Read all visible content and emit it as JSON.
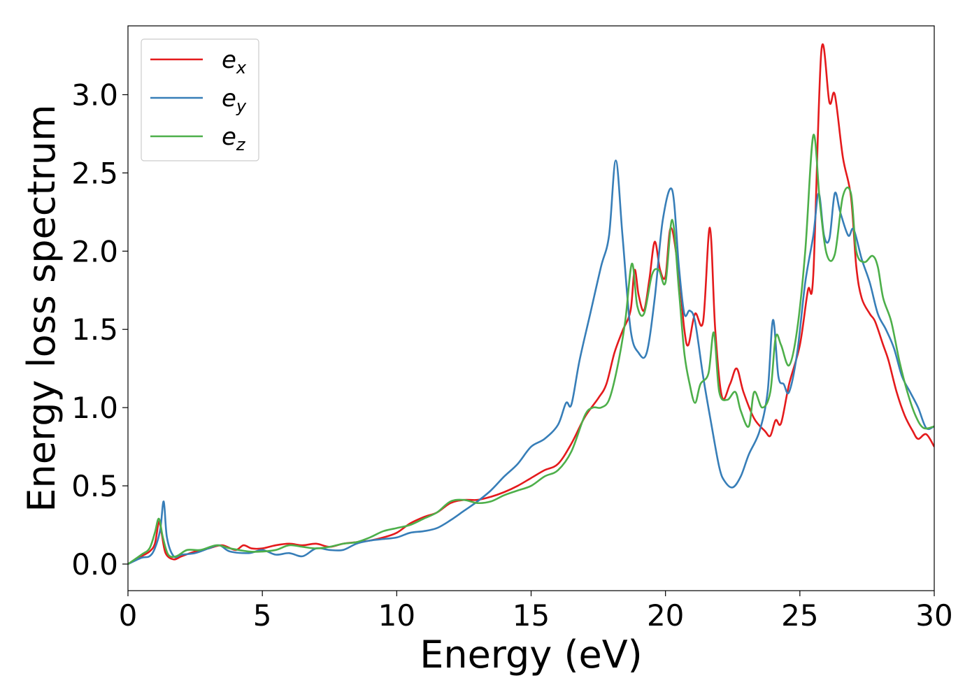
{
  "chart_data": {
    "type": "line",
    "title": "",
    "xlabel": "Energy (eV)",
    "ylabel": "Energy loss spectrum",
    "xlim": [
      0,
      30
    ],
    "ylim": [
      -0.17,
      3.44
    ],
    "xticks": [
      0,
      5,
      10,
      15,
      20,
      25,
      30
    ],
    "xtick_labels": [
      "0",
      "5",
      "10",
      "15",
      "20",
      "25",
      "30"
    ],
    "yticks": [
      0.0,
      0.5,
      1.0,
      1.5,
      2.0,
      2.5,
      3.0
    ],
    "ytick_labels": [
      "0.0",
      "0.5",
      "1.0",
      "1.5",
      "2.0",
      "2.5",
      "3.0"
    ],
    "grid": false,
    "legend_position": "top-left",
    "series": [
      {
        "name": "e_x",
        "legend_base": "e",
        "legend_sub": "x",
        "color": "#e41a1c",
        "points": [
          [
            0,
            0.0
          ],
          [
            0.5,
            0.05
          ],
          [
            0.8,
            0.08
          ],
          [
            1.0,
            0.13
          ],
          [
            1.15,
            0.27
          ],
          [
            1.25,
            0.2
          ],
          [
            1.4,
            0.07
          ],
          [
            1.7,
            0.03
          ],
          [
            2.0,
            0.05
          ],
          [
            2.5,
            0.08
          ],
          [
            3.0,
            0.1
          ],
          [
            3.5,
            0.12
          ],
          [
            4.0,
            0.09
          ],
          [
            4.3,
            0.12
          ],
          [
            4.6,
            0.1
          ],
          [
            5.0,
            0.1
          ],
          [
            5.5,
            0.12
          ],
          [
            6.0,
            0.13
          ],
          [
            6.5,
            0.12
          ],
          [
            7.0,
            0.13
          ],
          [
            7.5,
            0.11
          ],
          [
            8.0,
            0.13
          ],
          [
            8.5,
            0.14
          ],
          [
            9.0,
            0.15
          ],
          [
            9.5,
            0.17
          ],
          [
            10.0,
            0.2
          ],
          [
            10.5,
            0.26
          ],
          [
            11.0,
            0.3
          ],
          [
            11.5,
            0.33
          ],
          [
            12.0,
            0.39
          ],
          [
            12.5,
            0.41
          ],
          [
            13.0,
            0.41
          ],
          [
            13.5,
            0.43
          ],
          [
            14.0,
            0.46
          ],
          [
            14.5,
            0.5
          ],
          [
            15.0,
            0.55
          ],
          [
            15.5,
            0.6
          ],
          [
            16.0,
            0.64
          ],
          [
            16.5,
            0.77
          ],
          [
            17.0,
            0.94
          ],
          [
            17.5,
            1.06
          ],
          [
            17.8,
            1.15
          ],
          [
            18.1,
            1.35
          ],
          [
            18.4,
            1.49
          ],
          [
            18.7,
            1.62
          ],
          [
            18.85,
            1.88
          ],
          [
            19.0,
            1.72
          ],
          [
            19.2,
            1.62
          ],
          [
            19.4,
            1.82
          ],
          [
            19.6,
            2.06
          ],
          [
            19.8,
            1.88
          ],
          [
            20.0,
            1.84
          ],
          [
            20.2,
            2.15
          ],
          [
            20.5,
            1.85
          ],
          [
            20.7,
            1.5
          ],
          [
            20.85,
            1.4
          ],
          [
            21.1,
            1.6
          ],
          [
            21.4,
            1.55
          ],
          [
            21.65,
            2.15
          ],
          [
            21.85,
            1.5
          ],
          [
            22.1,
            1.07
          ],
          [
            22.4,
            1.15
          ],
          [
            22.65,
            1.25
          ],
          [
            22.9,
            1.1
          ],
          [
            23.3,
            0.93
          ],
          [
            23.7,
            0.85
          ],
          [
            23.9,
            0.82
          ],
          [
            24.1,
            0.92
          ],
          [
            24.3,
            0.9
          ],
          [
            24.6,
            1.15
          ],
          [
            25.0,
            1.4
          ],
          [
            25.3,
            1.75
          ],
          [
            25.5,
            1.85
          ],
          [
            25.8,
            3.28
          ],
          [
            26.1,
            2.95
          ],
          [
            26.3,
            3.0
          ],
          [
            26.6,
            2.6
          ],
          [
            26.9,
            2.35
          ],
          [
            27.1,
            1.9
          ],
          [
            27.3,
            1.7
          ],
          [
            27.6,
            1.6
          ],
          [
            27.8,
            1.55
          ],
          [
            28.1,
            1.4
          ],
          [
            28.3,
            1.3
          ],
          [
            28.6,
            1.1
          ],
          [
            28.9,
            0.95
          ],
          [
            29.2,
            0.85
          ],
          [
            29.4,
            0.8
          ],
          [
            29.7,
            0.83
          ],
          [
            30.0,
            0.75
          ]
        ]
      },
      {
        "name": "e_y",
        "legend_base": "e",
        "legend_sub": "y",
        "color": "#377eb8",
        "points": [
          [
            0,
            0.0
          ],
          [
            0.5,
            0.04
          ],
          [
            0.8,
            0.05
          ],
          [
            1.0,
            0.1
          ],
          [
            1.2,
            0.22
          ],
          [
            1.33,
            0.4
          ],
          [
            1.45,
            0.17
          ],
          [
            1.7,
            0.05
          ],
          [
            2.0,
            0.06
          ],
          [
            2.5,
            0.07
          ],
          [
            3.0,
            0.1
          ],
          [
            3.4,
            0.12
          ],
          [
            3.8,
            0.08
          ],
          [
            4.5,
            0.07
          ],
          [
            5.0,
            0.09
          ],
          [
            5.5,
            0.06
          ],
          [
            6.0,
            0.07
          ],
          [
            6.5,
            0.05
          ],
          [
            7.0,
            0.1
          ],
          [
            7.5,
            0.09
          ],
          [
            8.0,
            0.09
          ],
          [
            8.5,
            0.13
          ],
          [
            9.0,
            0.15
          ],
          [
            9.5,
            0.16
          ],
          [
            10.0,
            0.17
          ],
          [
            10.5,
            0.2
          ],
          [
            11.0,
            0.21
          ],
          [
            11.5,
            0.23
          ],
          [
            12.0,
            0.28
          ],
          [
            12.5,
            0.34
          ],
          [
            13.0,
            0.4
          ],
          [
            13.5,
            0.47
          ],
          [
            14.0,
            0.56
          ],
          [
            14.5,
            0.64
          ],
          [
            15.0,
            0.75
          ],
          [
            15.5,
            0.8
          ],
          [
            16.0,
            0.89
          ],
          [
            16.3,
            1.03
          ],
          [
            16.5,
            1.02
          ],
          [
            16.8,
            1.3
          ],
          [
            17.2,
            1.6
          ],
          [
            17.6,
            1.9
          ],
          [
            17.9,
            2.1
          ],
          [
            18.15,
            2.58
          ],
          [
            18.4,
            2.1
          ],
          [
            18.7,
            1.5
          ],
          [
            19.0,
            1.35
          ],
          [
            19.3,
            1.35
          ],
          [
            19.6,
            1.7
          ],
          [
            19.9,
            2.2
          ],
          [
            20.25,
            2.39
          ],
          [
            20.5,
            1.9
          ],
          [
            20.7,
            1.6
          ],
          [
            20.9,
            1.62
          ],
          [
            21.1,
            1.55
          ],
          [
            21.4,
            1.2
          ],
          [
            21.7,
            0.9
          ],
          [
            22.0,
            0.62
          ],
          [
            22.2,
            0.53
          ],
          [
            22.5,
            0.49
          ],
          [
            22.8,
            0.56
          ],
          [
            23.1,
            0.7
          ],
          [
            23.5,
            0.85
          ],
          [
            23.8,
            1.1
          ],
          [
            24.0,
            1.56
          ],
          [
            24.2,
            1.2
          ],
          [
            24.4,
            1.15
          ],
          [
            24.6,
            1.1
          ],
          [
            24.9,
            1.35
          ],
          [
            25.2,
            1.8
          ],
          [
            25.5,
            2.1
          ],
          [
            25.7,
            2.37
          ],
          [
            25.9,
            2.1
          ],
          [
            26.1,
            2.08
          ],
          [
            26.3,
            2.37
          ],
          [
            26.5,
            2.25
          ],
          [
            26.8,
            2.1
          ],
          [
            27.0,
            2.14
          ],
          [
            27.3,
            1.95
          ],
          [
            27.6,
            1.8
          ],
          [
            27.9,
            1.6
          ],
          [
            28.2,
            1.5
          ],
          [
            28.5,
            1.38
          ],
          [
            28.8,
            1.2
          ],
          [
            29.1,
            1.1
          ],
          [
            29.4,
            1.0
          ],
          [
            29.7,
            0.87
          ],
          [
            30.0,
            0.88
          ]
        ]
      },
      {
        "name": "e_z",
        "legend_base": "e",
        "legend_sub": "z",
        "color": "#4daf4a",
        "points": [
          [
            0,
            0.0
          ],
          [
            0.5,
            0.06
          ],
          [
            0.8,
            0.1
          ],
          [
            1.0,
            0.2
          ],
          [
            1.15,
            0.29
          ],
          [
            1.3,
            0.17
          ],
          [
            1.5,
            0.06
          ],
          [
            1.8,
            0.05
          ],
          [
            2.2,
            0.09
          ],
          [
            2.7,
            0.09
          ],
          [
            3.3,
            0.12
          ],
          [
            3.8,
            0.1
          ],
          [
            4.5,
            0.08
          ],
          [
            5.0,
            0.08
          ],
          [
            5.5,
            0.09
          ],
          [
            6.0,
            0.12
          ],
          [
            6.5,
            0.11
          ],
          [
            7.0,
            0.1
          ],
          [
            7.5,
            0.11
          ],
          [
            8.0,
            0.13
          ],
          [
            8.5,
            0.14
          ],
          [
            9.0,
            0.17
          ],
          [
            9.5,
            0.21
          ],
          [
            10.0,
            0.23
          ],
          [
            10.5,
            0.25
          ],
          [
            11.0,
            0.29
          ],
          [
            11.5,
            0.33
          ],
          [
            12.0,
            0.4
          ],
          [
            12.5,
            0.41
          ],
          [
            13.0,
            0.39
          ],
          [
            13.5,
            0.4
          ],
          [
            14.0,
            0.44
          ],
          [
            14.5,
            0.47
          ],
          [
            15.0,
            0.5
          ],
          [
            15.5,
            0.56
          ],
          [
            16.0,
            0.6
          ],
          [
            16.5,
            0.72
          ],
          [
            17.0,
            0.95
          ],
          [
            17.3,
            1.0
          ],
          [
            17.6,
            1.0
          ],
          [
            17.9,
            1.05
          ],
          [
            18.2,
            1.25
          ],
          [
            18.5,
            1.55
          ],
          [
            18.75,
            1.92
          ],
          [
            18.95,
            1.65
          ],
          [
            19.2,
            1.6
          ],
          [
            19.5,
            1.85
          ],
          [
            19.75,
            1.88
          ],
          [
            20.0,
            1.8
          ],
          [
            20.25,
            2.2
          ],
          [
            20.5,
            1.75
          ],
          [
            20.7,
            1.35
          ],
          [
            20.9,
            1.15
          ],
          [
            21.1,
            1.03
          ],
          [
            21.3,
            1.15
          ],
          [
            21.6,
            1.22
          ],
          [
            21.8,
            1.48
          ],
          [
            22.0,
            1.1
          ],
          [
            22.3,
            1.05
          ],
          [
            22.6,
            1.1
          ],
          [
            22.8,
            0.98
          ],
          [
            23.1,
            0.88
          ],
          [
            23.3,
            1.1
          ],
          [
            23.6,
            1.0
          ],
          [
            23.9,
            1.1
          ],
          [
            24.1,
            1.45
          ],
          [
            24.3,
            1.4
          ],
          [
            24.6,
            1.27
          ],
          [
            24.9,
            1.5
          ],
          [
            25.2,
            2.0
          ],
          [
            25.5,
            2.74
          ],
          [
            25.75,
            2.3
          ],
          [
            26.0,
            1.98
          ],
          [
            26.3,
            1.98
          ],
          [
            26.6,
            2.35
          ],
          [
            26.9,
            2.37
          ],
          [
            27.1,
            2.0
          ],
          [
            27.4,
            1.93
          ],
          [
            27.7,
            1.97
          ],
          [
            27.9,
            1.9
          ],
          [
            28.1,
            1.7
          ],
          [
            28.4,
            1.55
          ],
          [
            28.7,
            1.3
          ],
          [
            29.0,
            1.1
          ],
          [
            29.3,
            0.95
          ],
          [
            29.6,
            0.87
          ],
          [
            30.0,
            0.88
          ]
        ]
      }
    ]
  }
}
